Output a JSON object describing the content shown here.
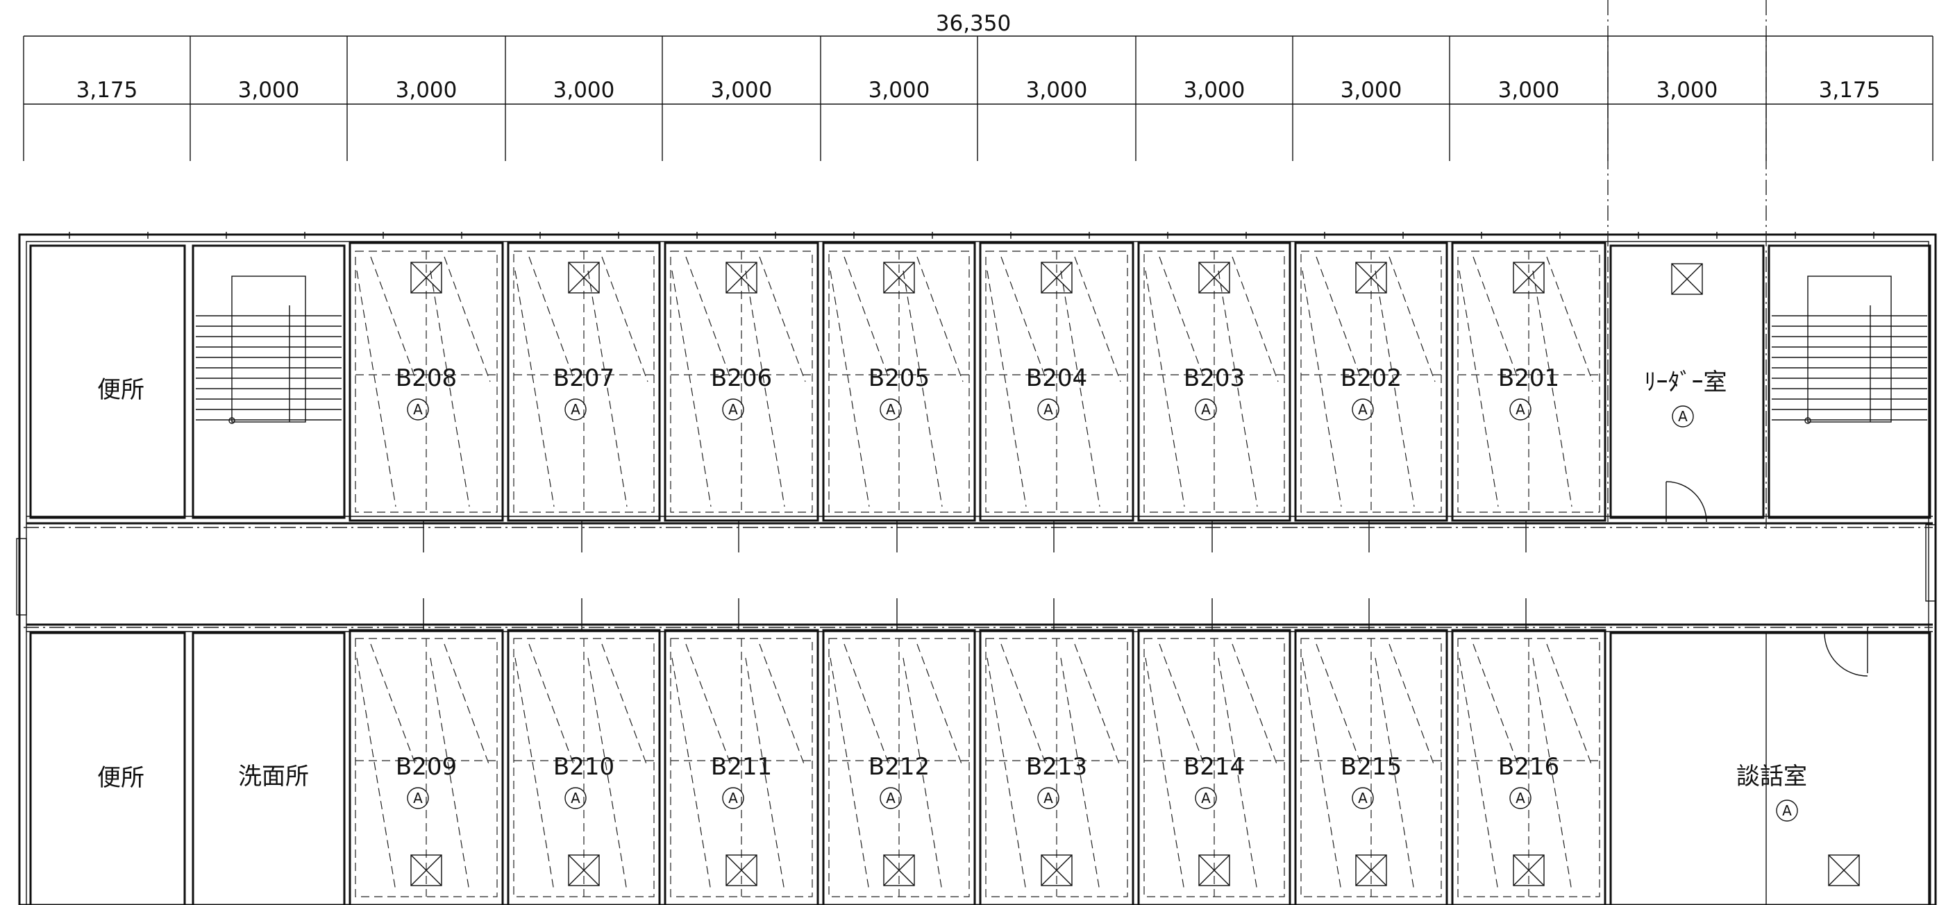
{
  "dimensions": {
    "total": "36,350",
    "spans": [
      "3,175",
      "3,000",
      "3,000",
      "3,000",
      "3,000",
      "3,000",
      "3,000",
      "3,000",
      "3,000",
      "3,000",
      "3,000",
      "3,175"
    ]
  },
  "rooms": {
    "top_units": [
      "B208",
      "B207",
      "B206",
      "B205",
      "B204",
      "B203",
      "B202",
      "B201"
    ],
    "bottom_units": [
      "B209",
      "B210",
      "B211",
      "B212",
      "B213",
      "B214",
      "B215",
      "B216"
    ],
    "toilet_top": "便所",
    "toilet_bottom": "便所",
    "washroom": "洗面所",
    "leader_room": "ﾘｰﾀﾞｰ室",
    "lounge": "談話室"
  },
  "mark": "A"
}
